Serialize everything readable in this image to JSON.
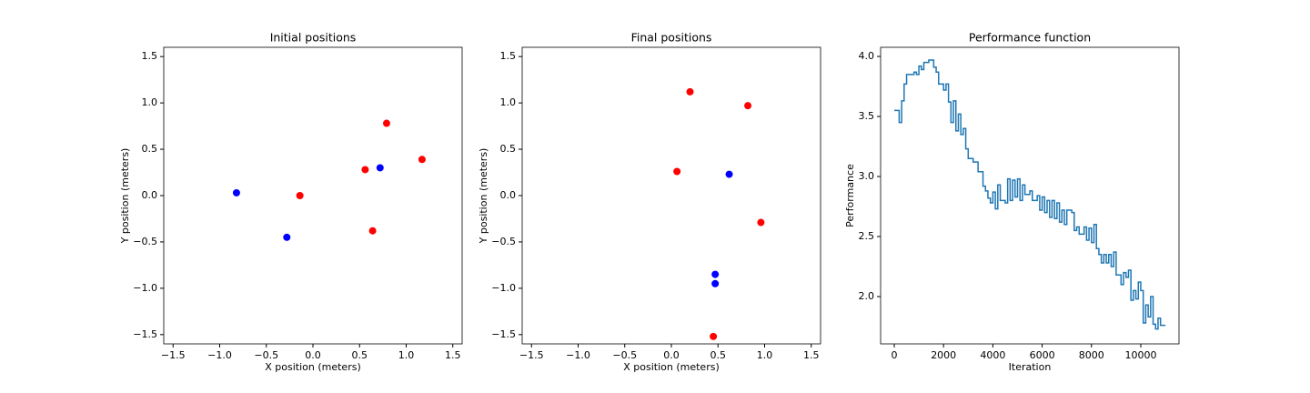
{
  "chart_data": [
    {
      "type": "scatter",
      "title": "Initial positions",
      "x_label": "X position (meters)",
      "y_label": "Y position (meters)",
      "series": [
        {
          "color": "#0000ff",
          "x": [
            -0.82,
            -0.28,
            0.72
          ],
          "values": [
            0.03,
            -0.45,
            0.3
          ]
        },
        {
          "color": "#ff0000",
          "x": [
            -0.14,
            0.56,
            0.79,
            1.17,
            0.64
          ],
          "values": [
            0.0,
            0.28,
            0.78,
            0.39,
            -0.38
          ]
        }
      ],
      "xlim": [
        -1.6,
        1.6
      ],
      "ylim": [
        -1.6,
        1.6
      ],
      "xticks": [
        {
          "value": -1.5,
          "label": "−1.5"
        },
        {
          "value": -1.0,
          "label": "−1.0"
        },
        {
          "value": -0.5,
          "label": "−0.5"
        },
        {
          "value": 0,
          "label": "0.0"
        },
        {
          "value": 0.5,
          "label": "0.5"
        },
        {
          "value": 1.0,
          "label": "1.0"
        },
        {
          "value": 1.5,
          "label": "1.5"
        }
      ],
      "yticks": [
        {
          "value": -1.5,
          "label": "−1.5"
        },
        {
          "value": -1.0,
          "label": "−1.0"
        },
        {
          "value": -0.5,
          "label": "−0.5"
        },
        {
          "value": 0,
          "label": "0.0"
        },
        {
          "value": 0.5,
          "label": "0.5"
        },
        {
          "value": 1.0,
          "label": "1.0"
        },
        {
          "value": 1.5,
          "label": "1.5"
        }
      ]
    },
    {
      "type": "scatter",
      "title": "Final positions",
      "x_label": "X position (meters)",
      "y_label": "Y position (meters)",
      "series": [
        {
          "color": "#ff0000",
          "x": [
            0.2,
            0.82,
            0.06,
            0.96,
            0.45
          ],
          "values": [
            1.12,
            0.97,
            0.26,
            -0.29,
            -1.52
          ]
        },
        {
          "color": "#0000ff",
          "x": [
            0.62,
            0.47,
            0.47
          ],
          "values": [
            0.23,
            -0.85,
            -0.95
          ]
        }
      ],
      "xlim": [
        -1.6,
        1.6
      ],
      "ylim": [
        -1.6,
        1.6
      ],
      "xticks": [
        {
          "value": -1.5,
          "label": "−1.5"
        },
        {
          "value": -1.0,
          "label": "−1.0"
        },
        {
          "value": -0.5,
          "label": "−0.5"
        },
        {
          "value": 0,
          "label": "0.0"
        },
        {
          "value": 0.5,
          "label": "0.5"
        },
        {
          "value": 1.0,
          "label": "1.0"
        },
        {
          "value": 1.5,
          "label": "1.5"
        }
      ],
      "yticks": [
        {
          "value": -1.5,
          "label": "−1.5"
        },
        {
          "value": -1.0,
          "label": "−1.0"
        },
        {
          "value": -0.5,
          "label": "−0.5"
        },
        {
          "value": 0,
          "label": "0.0"
        },
        {
          "value": 0.5,
          "label": "0.5"
        },
        {
          "value": 1.0,
          "label": "1.0"
        },
        {
          "value": 1.5,
          "label": "1.5"
        }
      ]
    },
    {
      "type": "step",
      "title": "Performance function",
      "x_label": "Iteration",
      "y_label": "Performance",
      "color": "#1f77b4",
      "x": [
        0,
        200,
        300,
        400,
        500,
        800,
        900,
        1000,
        1100,
        1200,
        1400,
        1600,
        1700,
        1800,
        2000,
        2100,
        2200,
        2300,
        2400,
        2500,
        2600,
        2700,
        2800,
        2900,
        3000,
        3200,
        3400,
        3600,
        3700,
        3800,
        3900,
        4000,
        4100,
        4200,
        4300,
        4500,
        4600,
        4700,
        4800,
        4900,
        5000,
        5100,
        5200,
        5300,
        5500,
        5600,
        5800,
        5900,
        6000,
        6100,
        6200,
        6300,
        6400,
        6500,
        6600,
        6700,
        6800,
        6900,
        7000,
        7200,
        7300,
        7400,
        7500,
        7700,
        7800,
        7900,
        8000,
        8100,
        8200,
        8300,
        8400,
        8500,
        8600,
        8700,
        8800,
        8900,
        9000,
        9200,
        9300,
        9400,
        9500,
        9600,
        9700,
        9800,
        9900,
        10000,
        10100,
        10200,
        10300,
        10400,
        10500,
        10600,
        10700,
        10800,
        11000
      ],
      "values": [
        3.55,
        3.45,
        3.63,
        3.77,
        3.85,
        3.87,
        3.85,
        3.92,
        3.89,
        3.95,
        3.97,
        3.91,
        3.87,
        3.77,
        3.72,
        3.77,
        3.62,
        3.45,
        3.63,
        3.38,
        3.52,
        3.35,
        3.4,
        3.23,
        3.15,
        3.12,
        3.04,
        2.92,
        2.88,
        2.82,
        2.78,
        2.87,
        2.73,
        2.93,
        2.8,
        2.78,
        2.98,
        2.8,
        2.97,
        2.83,
        2.98,
        2.8,
        2.93,
        2.85,
        2.88,
        2.8,
        2.84,
        2.72,
        2.83,
        2.7,
        2.8,
        2.66,
        2.8,
        2.65,
        2.78,
        2.62,
        2.72,
        2.6,
        2.72,
        2.7,
        2.55,
        2.58,
        2.52,
        2.58,
        2.47,
        2.57,
        2.45,
        2.6,
        2.4,
        2.35,
        2.28,
        2.35,
        2.28,
        2.35,
        2.25,
        2.37,
        2.18,
        2.1,
        2.2,
        2.16,
        2.22,
        1.97,
        2.05,
        1.98,
        2.12,
        2.05,
        1.78,
        1.93,
        1.83,
        2.0,
        1.77,
        1.73,
        1.82,
        1.76,
        1.76
      ],
      "xlim": [
        -553,
        11550
      ],
      "ylim": [
        1.606,
        4.076
      ],
      "xticks": [
        0,
        2000,
        4000,
        6000,
        8000,
        10000
      ],
      "yticks": [
        {
          "value": 2.0,
          "label": "2.0"
        },
        2.5,
        {
          "value": 3.0,
          "label": "3.0"
        },
        3.5,
        {
          "value": 4.0,
          "label": "4.0"
        }
      ]
    }
  ]
}
